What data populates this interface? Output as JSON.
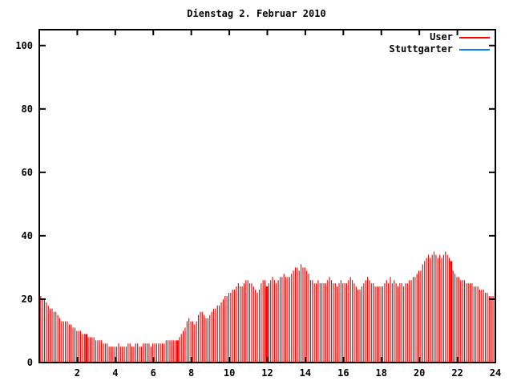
{
  "title": "Dienstag 2. Februar 2010",
  "legend": {
    "items": [
      {
        "label": "User",
        "color": "#ff0000"
      },
      {
        "label": "Stuttgarter",
        "color": "#0080ff"
      }
    ]
  },
  "colors": {
    "axis": "#000000",
    "background": "#ffffff",
    "user_series": "#ff0000",
    "stuttgarter_series": "#0080ff"
  },
  "chart_data": {
    "type": "bar",
    "subtype": "impulses",
    "title": "Dienstag 2. Februar 2010",
    "xlabel": "",
    "ylabel": "",
    "xlim": [
      0,
      24
    ],
    "ylim": [
      0,
      105
    ],
    "xticks": [
      2,
      4,
      6,
      8,
      10,
      12,
      14,
      16,
      18,
      20,
      22,
      24
    ],
    "yticks": [
      0,
      20,
      40,
      60,
      80,
      100
    ],
    "grid": false,
    "legend_position": "top-right",
    "x_step_hours": 0.1,
    "series": [
      {
        "name": "User",
        "color": "#ff0000",
        "style": "impulses",
        "values": [
          21,
          20,
          20,
          19,
          18,
          17,
          17,
          16,
          16,
          15,
          14,
          13,
          13,
          13,
          13,
          12,
          12,
          11,
          11,
          10,
          10,
          10,
          9,
          9,
          9,
          8,
          8,
          8,
          8,
          7,
          7,
          7,
          7,
          6,
          6,
          6,
          5,
          5,
          5,
          5,
          5,
          6,
          5,
          5,
          5,
          5,
          6,
          6,
          5,
          5,
          6,
          6,
          5,
          5,
          6,
          6,
          6,
          6,
          5,
          6,
          6,
          6,
          6,
          6,
          6,
          6,
          7,
          7,
          7,
          7,
          7,
          7,
          7,
          8,
          9,
          10,
          11,
          13,
          14,
          13,
          13,
          12,
          13,
          15,
          16,
          16,
          15,
          14,
          14,
          15,
          16,
          17,
          17,
          18,
          18,
          19,
          20,
          21,
          21,
          22,
          22,
          23,
          23,
          24,
          25,
          24,
          24,
          25,
          26,
          26,
          25,
          25,
          24,
          23,
          22,
          23,
          25,
          26,
          26,
          24,
          25,
          26,
          27,
          26,
          25,
          26,
          27,
          27,
          28,
          27,
          27,
          27,
          28,
          29,
          30,
          30,
          29,
          31,
          30,
          30,
          29,
          28,
          26,
          26,
          25,
          25,
          26,
          25,
          25,
          25,
          25,
          26,
          27,
          26,
          25,
          25,
          24,
          25,
          26,
          25,
          25,
          25,
          26,
          27,
          26,
          25,
          24,
          23,
          23,
          24,
          25,
          26,
          27,
          26,
          25,
          25,
          24,
          24,
          24,
          24,
          24,
          25,
          26,
          25,
          27,
          25,
          26,
          25,
          24,
          25,
          25,
          24,
          25,
          25,
          26,
          26,
          27,
          27,
          28,
          29,
          29,
          31,
          32,
          33,
          34,
          33,
          34,
          35,
          34,
          33,
          34,
          33,
          34,
          35,
          34,
          33,
          32,
          29,
          28,
          27,
          27,
          26,
          26,
          26,
          25,
          25,
          25,
          25,
          24,
          24,
          24,
          23,
          23,
          23,
          22,
          22,
          21,
          21,
          21,
          22
        ],
        "highlight_indices": [
          24,
          72,
          119,
          216
        ]
      },
      {
        "name": "Stuttgarter",
        "color": "#0080ff",
        "style": "line",
        "values": []
      }
    ]
  }
}
